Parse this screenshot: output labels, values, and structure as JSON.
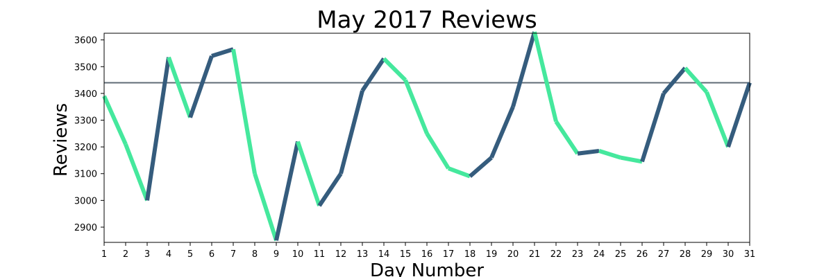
{
  "chart_data": {
    "type": "line",
    "title": "May 2017 Reviews",
    "xlabel": "Day Number",
    "ylabel": "Reviews",
    "x": [
      1,
      2,
      3,
      4,
      5,
      6,
      7,
      8,
      9,
      10,
      11,
      12,
      13,
      14,
      15,
      16,
      17,
      18,
      19,
      20,
      21,
      22,
      23,
      24,
      25,
      26,
      27,
      28,
      29,
      30,
      31
    ],
    "values": [
      3390,
      3210,
      3000,
      3535,
      3310,
      3540,
      3565,
      3100,
      2850,
      3220,
      2980,
      3100,
      3410,
      3530,
      3450,
      3250,
      3120,
      3090,
      3160,
      3350,
      3630,
      3295,
      3175,
      3185,
      3160,
      3145,
      3400,
      3495,
      3405,
      3200,
      3440
    ],
    "xlim": [
      1,
      31
    ],
    "ylim": [
      2843,
      3625
    ],
    "yticks": [
      2900,
      3000,
      3100,
      3200,
      3300,
      3400,
      3500,
      3600
    ],
    "xticks": [
      1,
      2,
      3,
      4,
      5,
      6,
      7,
      8,
      9,
      10,
      11,
      12,
      13,
      14,
      15,
      16,
      17,
      18,
      19,
      20,
      21,
      22,
      23,
      24,
      25,
      26,
      27,
      28,
      29,
      30,
      31
    ],
    "reference_line": 3440,
    "colors": {
      "increase": "#355c7d",
      "decrease": "#45e89d",
      "reference": "#5f6b76",
      "axes": "#000000"
    },
    "grid": false
  }
}
